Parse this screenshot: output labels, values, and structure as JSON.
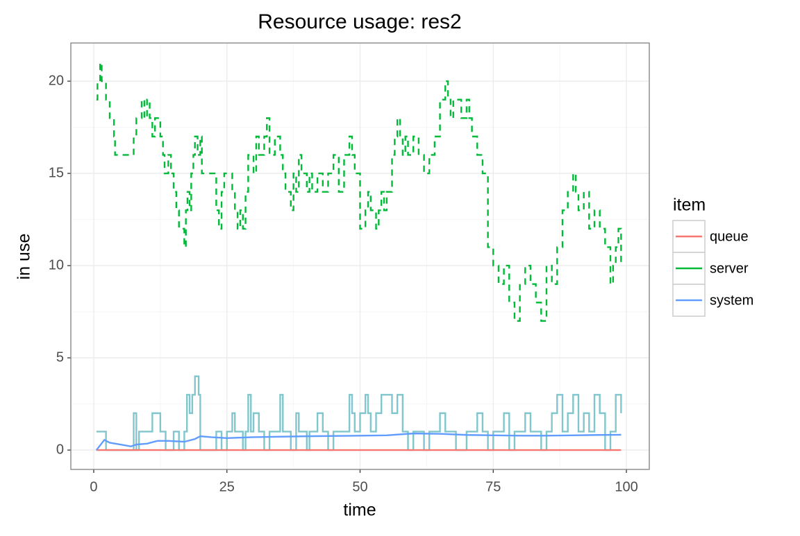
{
  "chart_data": {
    "type": "line",
    "title": "Resource usage: res2",
    "xlabel": "time",
    "ylabel": "in use",
    "legend_title": "item",
    "legend_position": "right",
    "grid": true,
    "xlim": [
      -4.3,
      104.3
    ],
    "ylim": [
      -1.05,
      22.07
    ],
    "xticks": [
      0,
      25,
      50,
      75,
      100
    ],
    "yticks": [
      0,
      5,
      10,
      15,
      20
    ],
    "series": [
      {
        "name": "queue",
        "color": "#F8766D",
        "dash": false,
        "step": true,
        "x": [
          0.5,
          99
        ],
        "values": [
          0,
          0
        ]
      },
      {
        "name": "server",
        "color": "#00BA38",
        "dash": true,
        "step": true,
        "x": [
          0.5,
          0.7,
          1.2,
          1.5,
          2.3,
          3,
          3.8,
          4,
          7.5,
          8,
          9,
          9.5,
          10,
          10.5,
          11,
          11.5,
          12.5,
          13,
          13.3,
          14,
          14.5,
          15,
          15.5,
          16,
          17,
          17.3,
          17.6,
          18,
          18.3,
          18.7,
          19,
          19.5,
          20,
          20.3,
          23,
          23.5,
          24,
          24.5,
          26,
          26.5,
          27,
          27.5,
          28,
          28.5,
          29,
          30,
          30.5,
          31,
          32,
          32.5,
          33,
          34,
          35,
          35.5,
          36,
          37,
          37.5,
          38,
          38.5,
          39,
          40,
          40.5,
          41,
          42,
          43,
          44,
          45,
          46,
          47,
          48,
          48.5,
          49,
          50,
          51,
          51.5,
          52,
          53,
          53.5,
          54,
          54.5,
          55,
          56,
          56.5,
          57,
          57.5,
          58,
          58.5,
          59,
          60,
          61,
          62,
          63,
          64,
          65,
          66,
          66.5,
          67,
          67.5,
          69,
          70,
          70.5,
          71,
          72,
          73,
          74,
          75,
          76,
          77,
          78,
          79,
          80,
          81,
          82,
          83,
          84,
          85,
          86,
          87,
          88,
          89,
          90,
          90.5,
          91,
          92,
          93,
          94,
          95,
          96,
          97,
          97.5,
          98,
          98.5,
          99
        ],
        "values": [
          19,
          20,
          21,
          20,
          19,
          18,
          17,
          16,
          17,
          18,
          19,
          18,
          19,
          18,
          17,
          18,
          17,
          16,
          15,
          16,
          15,
          14,
          13,
          12,
          11,
          13,
          14,
          13,
          15,
          16,
          17,
          16,
          17,
          15,
          13,
          12,
          14,
          15,
          14,
          13,
          12,
          13,
          12,
          14,
          16,
          15,
          17,
          16,
          17,
          18,
          16,
          17,
          16,
          15,
          14,
          13,
          15,
          14,
          16,
          15,
          14,
          15,
          14,
          15,
          14,
          15,
          16,
          14,
          16,
          17,
          16,
          15,
          12,
          13,
          14,
          13,
          12,
          13,
          14,
          13,
          14,
          16,
          17,
          18,
          17,
          16,
          17,
          16,
          17,
          16,
          15,
          16,
          17,
          19,
          20,
          19,
          18,
          19,
          18,
          19,
          18,
          17,
          16,
          15,
          11,
          10,
          9,
          10,
          8,
          7,
          9,
          10,
          9,
          8,
          7,
          10,
          9,
          11,
          13,
          14,
          15,
          14,
          13,
          14,
          12,
          13,
          12,
          11,
          9,
          10,
          11,
          12,
          10
        ]
      },
      {
        "name": "system",
        "color": "#619CFF",
        "dash": false,
        "step": false,
        "x": [
          0.5,
          2,
          3,
          5,
          7,
          8,
          10,
          12,
          14,
          17,
          19,
          20,
          22,
          25,
          30,
          40,
          50,
          55,
          60,
          65,
          70,
          75,
          80,
          85,
          90,
          95,
          99
        ],
        "values": [
          0,
          0.55,
          0.4,
          0.3,
          0.2,
          0.3,
          0.35,
          0.5,
          0.5,
          0.45,
          0.6,
          0.75,
          0.7,
          0.65,
          0.7,
          0.75,
          0.78,
          0.8,
          0.9,
          0.88,
          0.82,
          0.8,
          0.78,
          0.78,
          0.8,
          0.82,
          0.83
        ]
      },
      {
        "name": null,
        "color": "#80C6CC",
        "dash": false,
        "step": true,
        "x": [
          0.5,
          2.3,
          7.5,
          8,
          8.5,
          11,
          12.5,
          13.5,
          15,
          16,
          17,
          17.5,
          18,
          18.5,
          19,
          19.7,
          20,
          23,
          24,
          25,
          26,
          26.5,
          28,
          28.5,
          29,
          29.5,
          30,
          31,
          32,
          33,
          35,
          35.5,
          37,
          38,
          38.5,
          40,
          40.5,
          42,
          43,
          44,
          45,
          48,
          48.5,
          49,
          50,
          51,
          51.5,
          52,
          53,
          54,
          56,
          57,
          58,
          59,
          60,
          62,
          63,
          65,
          66,
          68,
          70,
          72,
          73,
          74,
          75,
          77,
          78,
          79,
          81,
          82,
          84,
          85,
          86,
          87,
          88,
          89,
          90,
          91,
          92,
          93,
          94,
          95,
          96,
          97,
          98,
          99
        ],
        "values": [
          1,
          0,
          2,
          0,
          1,
          2,
          1,
          0,
          1,
          0,
          1,
          3,
          2,
          3,
          4,
          3,
          0,
          1,
          0,
          1,
          2,
          1,
          0,
          1,
          3,
          1,
          2,
          1,
          0,
          1,
          3,
          1,
          0,
          2,
          1,
          0,
          1,
          2,
          1,
          0,
          1,
          3,
          2,
          1,
          2,
          3,
          2,
          1,
          2,
          3,
          2,
          3,
          1,
          0,
          1,
          0,
          1,
          2,
          1,
          0,
          1,
          2,
          1,
          0,
          1,
          2,
          0,
          1,
          2,
          1,
          0,
          1,
          2,
          3,
          1,
          2,
          3,
          1,
          2,
          1,
          3,
          2,
          0,
          1,
          3,
          2
        ]
      }
    ]
  }
}
